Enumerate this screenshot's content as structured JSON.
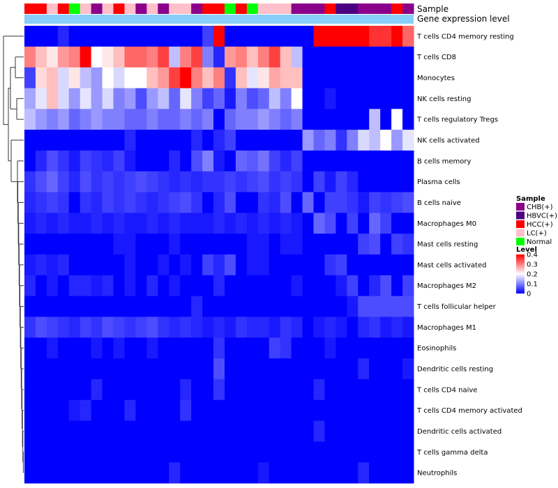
{
  "chart_data": {
    "type": "heatmap",
    "title": "",
    "annotation_labels": {
      "sample": "Sample",
      "expression": "Gene expression level"
    },
    "sample_groups": [
      "CHB(+)",
      "HBVC(+)",
      "HCC(+)",
      "LC(+)",
      "Normal"
    ],
    "group_colors": {
      "CHB(+)": "#8B008B",
      "HBVC(+)": "#4B0082",
      "HCC(+)": "#FF0000",
      "LC(+)": "#FFC0CB",
      "Normal": "#00FF00"
    },
    "expression_bar_color": "#87CEFA",
    "columns": [
      "HCC(+)",
      "HCC(+)",
      "LC(+)",
      "HCC(+)",
      "Normal",
      "LC(+)",
      "CHB(+)",
      "LC(+)",
      "HCC(+)",
      "LC(+)",
      "CHB(+)",
      "LC(+)",
      "CHB(+)",
      "LC(+)",
      "LC(+)",
      "CHB(+)",
      "HCC(+)",
      "HCC(+)",
      "Normal",
      "HCC(+)",
      "Normal",
      "LC(+)",
      "LC(+)",
      "LC(+)",
      "CHB(+)",
      "CHB(+)",
      "CHB(+)",
      "HCC(+)",
      "HBVC(+)",
      "HBVC(+)",
      "CHB(+)",
      "CHB(+)",
      "CHB(+)",
      "HCC(+)",
      "CHB(+)"
    ],
    "rows": [
      "T cells CD4 memory resting",
      "T cells CD8",
      "Monocytes",
      "NK cells resting",
      "T cells regulatory  Tregs",
      "NK cells activated",
      "B cells memory",
      "Plasma cells",
      "B cells naive",
      "Macrophages M0",
      "Mast cells resting",
      "Mast cells activated",
      "Macrophages M2",
      "T cells follicular helper",
      "Macrophages M1",
      "Eosinophils",
      "Dendritic cells resting",
      "T cells CD4 naive",
      "T cells CD4 memory activated",
      "Dendritic cells activated",
      "T cells gamma delta",
      "Neutrophils"
    ],
    "values": [
      [
        0,
        0,
        0,
        0.03,
        0,
        0,
        0,
        0,
        0,
        0,
        0,
        0,
        0,
        0,
        0,
        0,
        0.05,
        0.42,
        0,
        0,
        0,
        0,
        0,
        0,
        0,
        0,
        0.4,
        0.4,
        0.4,
        0.4,
        0.4,
        0.36,
        0.36,
        0.42,
        0.32
      ],
      [
        0.3,
        0.25,
        0.22,
        0.28,
        0.3,
        0.4,
        0.2,
        0.22,
        0.25,
        0.32,
        0.32,
        0.3,
        0.35,
        0.15,
        0.3,
        0.35,
        0.1,
        0.03,
        0.28,
        0.3,
        0.25,
        0.3,
        0.35,
        0.25,
        0.15,
        0,
        0,
        0,
        0,
        0,
        0,
        0,
        0,
        0,
        0
      ],
      [
        0.05,
        0.23,
        0.25,
        0.17,
        0.22,
        0.15,
        0.12,
        0.2,
        0.17,
        0.2,
        0.2,
        0.25,
        0.28,
        0.35,
        0.42,
        0.3,
        0.25,
        0.3,
        0.04,
        0.25,
        0.18,
        0.22,
        0.27,
        0.25,
        0.25,
        0,
        0,
        0,
        0,
        0,
        0,
        0,
        0,
        0,
        0
      ],
      [
        0.13,
        0.18,
        0.25,
        0.17,
        0.12,
        0.18,
        0.12,
        0.17,
        0.1,
        0.12,
        0.06,
        0.12,
        0.15,
        0.08,
        0.18,
        0.1,
        0.05,
        0.08,
        0.02,
        0.1,
        0.06,
        0.08,
        0.15,
        0.1,
        0.2,
        0,
        0,
        0.02,
        0,
        0,
        0,
        0,
        0,
        0,
        0
      ],
      [
        0.15,
        0.12,
        0.1,
        0.12,
        0.08,
        0.1,
        0.12,
        0.1,
        0.1,
        0.08,
        0.08,
        0.1,
        0.08,
        0.08,
        0.1,
        0.08,
        0.1,
        0,
        0.08,
        0.1,
        0.1,
        0.12,
        0.1,
        0.08,
        0.1,
        0,
        0,
        0,
        0,
        0,
        0,
        0.15,
        0,
        0.2,
        0
      ],
      [
        0,
        0,
        0,
        0,
        0,
        0,
        0,
        0,
        0,
        0.03,
        0,
        0,
        0,
        0,
        0,
        0.03,
        0,
        0.03,
        0.05,
        0,
        0,
        0,
        0,
        0,
        0,
        0.12,
        0.08,
        0.1,
        0.04,
        0.1,
        0.17,
        0.15,
        0.2,
        0.12,
        0.18
      ],
      [
        0,
        0.03,
        0.06,
        0.04,
        0.02,
        0.05,
        0.04,
        0.03,
        0.05,
        0.02,
        0,
        0,
        0,
        0.03,
        0,
        0.06,
        0.1,
        0.02,
        0,
        0.08,
        0.07,
        0.09,
        0.05,
        0.03,
        0.05,
        0,
        0,
        0,
        0,
        0,
        0,
        0,
        0,
        0,
        0
      ],
      [
        0.04,
        0.06,
        0.08,
        0.05,
        0.03,
        0.06,
        0.04,
        0.05,
        0.04,
        0.05,
        0.06,
        0.05,
        0.04,
        0.03,
        0.04,
        0.03,
        0.04,
        0.04,
        0.05,
        0.04,
        0.05,
        0.06,
        0.04,
        0.05,
        0.04,
        0,
        0.05,
        0.02,
        0.05,
        0.03,
        0,
        0,
        0,
        0,
        0
      ],
      [
        0.03,
        0.04,
        0.05,
        0.04,
        0,
        0.04,
        0.03,
        0.05,
        0.04,
        0.05,
        0.04,
        0.03,
        0.04,
        0.05,
        0.06,
        0.04,
        0,
        0.03,
        0.06,
        0,
        0,
        0.04,
        0.03,
        0.06,
        0,
        0.08,
        0,
        0.05,
        0.05,
        0.04,
        0.02,
        0.05,
        0.04,
        0.05,
        0.06
      ],
      [
        0.02,
        0.03,
        0.02,
        0.03,
        0.02,
        0.02,
        0.03,
        0.02,
        0.03,
        0.02,
        0.02,
        0.03,
        0.02,
        0.03,
        0.02,
        0.02,
        0.02,
        0.03,
        0.02,
        0.03,
        0.02,
        0.03,
        0.02,
        0.03,
        0.02,
        0,
        0.08,
        0.06,
        0,
        0.05,
        0,
        0.08,
        0.05,
        0,
        0
      ],
      [
        0,
        0,
        0,
        0,
        0,
        0,
        0,
        0,
        0.02,
        0.02,
        0,
        0,
        0,
        0.02,
        0,
        0,
        0,
        0,
        0,
        0,
        0.02,
        0.02,
        0,
        0.02,
        0.02,
        0,
        0,
        0,
        0,
        0,
        0.05,
        0.06,
        0,
        0.05,
        0.04
      ],
      [
        0.02,
        0.03,
        0.02,
        0.03,
        0,
        0,
        0,
        0,
        0,
        0.02,
        0,
        0,
        0.02,
        0,
        0.02,
        0,
        0.05,
        0.03,
        0.06,
        0,
        0.02,
        0.02,
        0,
        0,
        0,
        0,
        0,
        0.04,
        0.05,
        0,
        0,
        0,
        0,
        0,
        0
      ],
      [
        0.03,
        0,
        0.02,
        0,
        0.03,
        0.03,
        0.02,
        0.03,
        0,
        0.02,
        0,
        0.03,
        0,
        0.02,
        0,
        0,
        0,
        0.03,
        0,
        0,
        0,
        0,
        0,
        0,
        0.02,
        0,
        0,
        0,
        0.02,
        0.05,
        0,
        0.03,
        0.06,
        0,
        0.05
      ],
      [
        0,
        0,
        0,
        0,
        0,
        0,
        0,
        0,
        0,
        0,
        0,
        0,
        0,
        0,
        0,
        0.03,
        0,
        0,
        0,
        0,
        0,
        0,
        0,
        0,
        0,
        0,
        0,
        0,
        0,
        0.02,
        0.06,
        0.06,
        0.06,
        0.06,
        0.06
      ],
      [
        0.04,
        0.06,
        0.05,
        0.04,
        0.03,
        0.05,
        0.04,
        0.06,
        0.05,
        0.04,
        0.05,
        0.06,
        0.04,
        0.03,
        0.04,
        0.03,
        0.02,
        0.03,
        0.02,
        0.04,
        0.03,
        0.03,
        0.02,
        0.04,
        0.03,
        0,
        0.02,
        0.03,
        0.02,
        0,
        0.03,
        0.04,
        0.02,
        0.03,
        0.02
      ],
      [
        0,
        0,
        0.02,
        0,
        0,
        0,
        0.02,
        0,
        0.02,
        0,
        0,
        0.02,
        0,
        0,
        0,
        0,
        0,
        0.04,
        0,
        0,
        0,
        0,
        0.05,
        0.04,
        0,
        0,
        0,
        0.02,
        0,
        0,
        0,
        0,
        0,
        0,
        0
      ],
      [
        0,
        0,
        0,
        0,
        0,
        0,
        0,
        0,
        0,
        0,
        0,
        0,
        0,
        0,
        0,
        0,
        0,
        0.06,
        0,
        0,
        0,
        0,
        0,
        0,
        0,
        0,
        0,
        0,
        0,
        0,
        0.03,
        0,
        0,
        0,
        0.02
      ],
      [
        0,
        0,
        0,
        0,
        0,
        0,
        0.03,
        0,
        0,
        0,
        0,
        0,
        0,
        0,
        0.03,
        0,
        0,
        0.04,
        0,
        0,
        0,
        0,
        0,
        0,
        0,
        0,
        0.03,
        0,
        0,
        0,
        0,
        0,
        0,
        0,
        0
      ],
      [
        0,
        0,
        0,
        0,
        0.02,
        0.03,
        0,
        0,
        0,
        0.03,
        0,
        0,
        0,
        0,
        0.04,
        0,
        0,
        0,
        0,
        0,
        0,
        0,
        0,
        0,
        0,
        0,
        0,
        0,
        0,
        0,
        0,
        0,
        0,
        0,
        0
      ],
      [
        0,
        0,
        0,
        0,
        0,
        0,
        0,
        0,
        0,
        0,
        0,
        0,
        0,
        0,
        0,
        0,
        0,
        0,
        0,
        0,
        0,
        0,
        0,
        0,
        0,
        0,
        0.03,
        0,
        0,
        0,
        0,
        0,
        0,
        0,
        0
      ],
      [
        0,
        0,
        0,
        0,
        0,
        0,
        0,
        0,
        0,
        0,
        0,
        0,
        0,
        0,
        0,
        0,
        0,
        0,
        0,
        0,
        0,
        0,
        0,
        0,
        0,
        0,
        0,
        0,
        0,
        0,
        0,
        0,
        0,
        0,
        0
      ],
      [
        0,
        0,
        0,
        0,
        0,
        0,
        0,
        0,
        0,
        0,
        0,
        0,
        0,
        0.03,
        0,
        0,
        0,
        0,
        0,
        0,
        0,
        0.02,
        0,
        0,
        0,
        0,
        0,
        0,
        0,
        0,
        0.03,
        0,
        0,
        0,
        0
      ]
    ],
    "color_scale": {
      "min": 0,
      "mid": 0.2,
      "max": 0.4,
      "low_color": "#0000FF",
      "mid_color": "#FFFFFF",
      "high_color": "#FF0000"
    },
    "legend": {
      "position": "right",
      "sample_title": "Sample",
      "level_title": "Level",
      "level_ticks": [
        "0.4",
        "0.3",
        "0.2",
        "0.1",
        "0"
      ]
    }
  }
}
